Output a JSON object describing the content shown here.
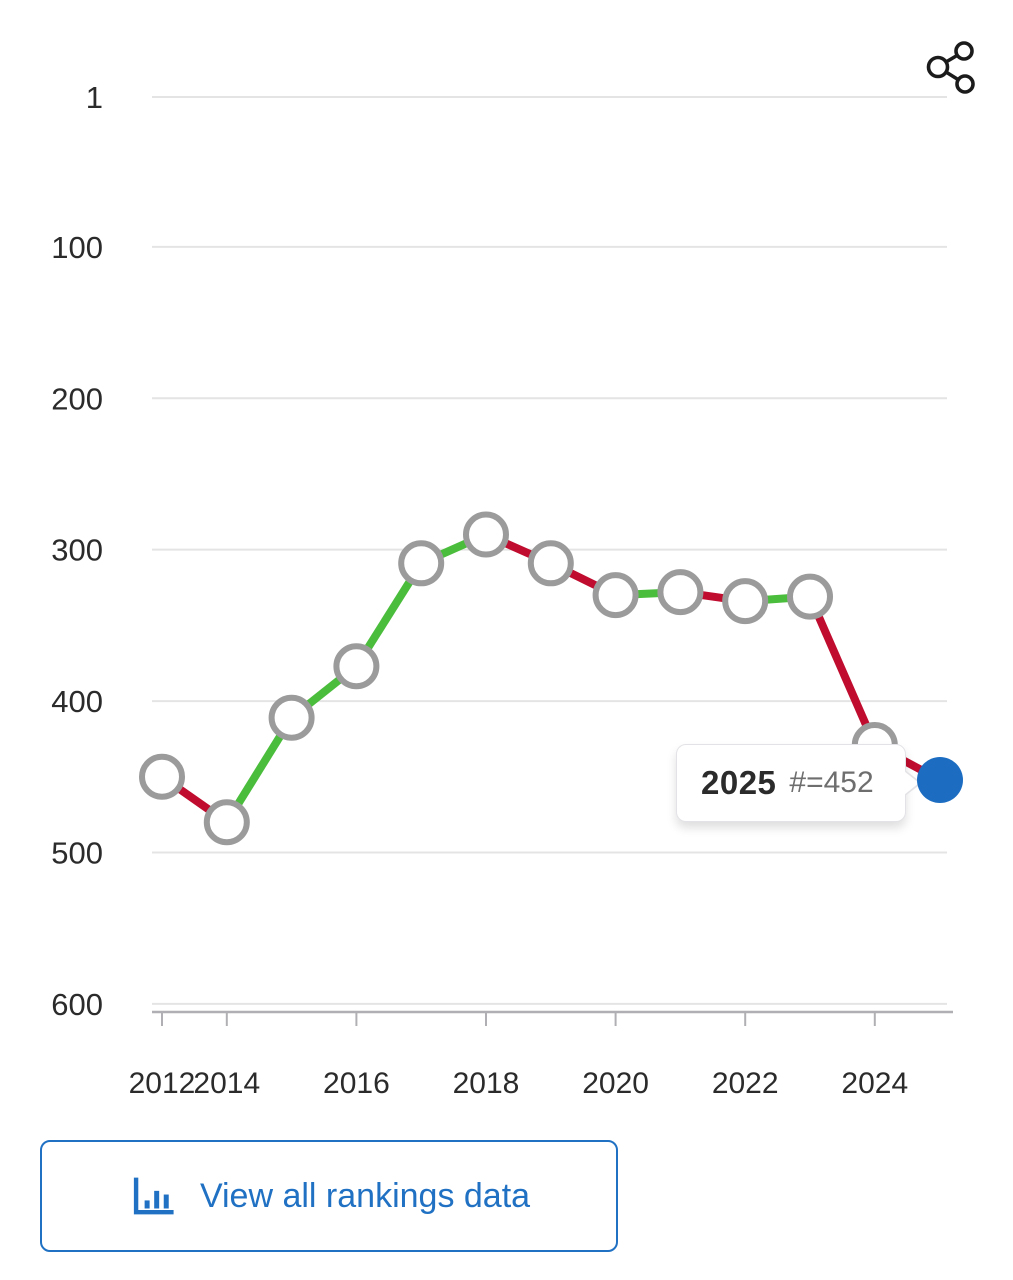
{
  "icons": {
    "share": "share-icon",
    "view_rankings": "bar-chart-icon"
  },
  "chart_data": {
    "type": "line",
    "title": "",
    "x": [
      2012,
      2014,
      2015,
      2016,
      2017,
      2018,
      2019,
      2020,
      2021,
      2022,
      2023,
      2024,
      2025
    ],
    "values": [
      450,
      480,
      411,
      377,
      309,
      290,
      309,
      330,
      328,
      334,
      331,
      429,
      452
    ],
    "y_ticks": [
      1,
      100,
      200,
      300,
      400,
      500,
      600
    ],
    "x_tick_labels": [
      "2012",
      "2014",
      "2016",
      "2018",
      "2020",
      "2022",
      "2024"
    ],
    "x_tick_indices": [
      0,
      1,
      3,
      5,
      7,
      9,
      11
    ],
    "y_axis": {
      "inverted": true,
      "range": [
        1,
        600
      ]
    },
    "grid": true,
    "legend": false,
    "current_point": {
      "year": "2025",
      "rank": 452,
      "display": "#=452"
    },
    "colors": {
      "improved_segment": "#4bbd3c",
      "declined_segment": "#c00c2e",
      "current_point": "#1c6dc2",
      "marker_fill": "#ffffff",
      "marker_stroke": "#9b9b9b",
      "gridline": "#e4e4e4",
      "axis": "#b0b0b4",
      "tick_label": "#2b2b2b",
      "accent_blue": "#2071c3"
    }
  },
  "tooltip": {
    "year": "2025",
    "value": "#=452"
  },
  "footer": {
    "view_all_label": "View all rankings data"
  }
}
